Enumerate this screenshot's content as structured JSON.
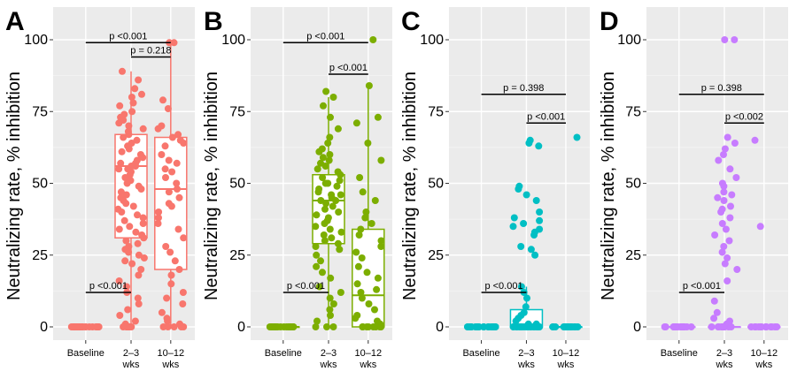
{
  "figure": {
    "y_axis_label": "Neutralizing rate, % inhibition",
    "groups": [
      "Baseline",
      "2–3 wks",
      "10–12 wks"
    ],
    "colors": {
      "A": "#F8766D",
      "B": "#7CAE00",
      "C": "#00BFC4",
      "D": "#C77CFF",
      "panel_background": "#EBEBEB",
      "grid_major": "#FFFFFF",
      "grid_minor": "#F5F5F5"
    }
  },
  "chart_data": [
    {
      "type": "box",
      "panel": "A",
      "categories": [
        "Baseline",
        "2–3 wks",
        "10–12 wks"
      ],
      "ylim": [
        0,
        100
      ],
      "yticks": [
        0,
        25,
        50,
        75,
        100
      ],
      "boxes": [
        {
          "group": "Baseline",
          "q1": 0,
          "median": 0,
          "q3": 0,
          "whisker_low": 0,
          "whisker_high": 0
        },
        {
          "group": "2–3 wks",
          "q1": 31,
          "median": 56,
          "q3": 67,
          "whisker_low": 0,
          "whisker_high": 89
        },
        {
          "group": "10–12 wks",
          "q1": 20,
          "median": 48,
          "q3": 66,
          "whisker_low": 0,
          "whisker_high": 99
        }
      ],
      "points": [
        {
          "group": "Baseline",
          "values": [
            0,
            0,
            0,
            0,
            0,
            0,
            0,
            0,
            0,
            0,
            0,
            0,
            0,
            0,
            0,
            0,
            0,
            0,
            0,
            0,
            0,
            0,
            0,
            0
          ]
        },
        {
          "group": "2–3 wks",
          "values": [
            89,
            86,
            83,
            81,
            80,
            78,
            77,
            75,
            74,
            73,
            72,
            71,
            70,
            69,
            68,
            67,
            66,
            65,
            64,
            63,
            62,
            61,
            60,
            59,
            58,
            57,
            57,
            56,
            56,
            55,
            55,
            54,
            53,
            52,
            51,
            50,
            49,
            48,
            47,
            46,
            45,
            44,
            43,
            42,
            41,
            40,
            39,
            38,
            37,
            36,
            35,
            34,
            33,
            32,
            31,
            30,
            29,
            28,
            27,
            26,
            25,
            24,
            23,
            22,
            20,
            18,
            16,
            14,
            12,
            10,
            8,
            6,
            4,
            2,
            1,
            0,
            0,
            0,
            0,
            0,
            0
          ]
        },
        {
          "group": "10–12 wks",
          "values": [
            99,
            99,
            79,
            76,
            70,
            69,
            67,
            66,
            65,
            64,
            63,
            60,
            58,
            57,
            55,
            54,
            52,
            50,
            48,
            47,
            45,
            43,
            42,
            40,
            38,
            36,
            34,
            31,
            28,
            26,
            23,
            20,
            18,
            15,
            12,
            10,
            8,
            5,
            3,
            2,
            1,
            0,
            0,
            0,
            0,
            0
          ]
        }
      ],
      "comparisons": [
        {
          "label": "p <0.001",
          "from": "Baseline",
          "to": "10–12 wks",
          "y": 99
        },
        {
          "label": "p = 0.218",
          "from": "2–3 wks",
          "to": "10–12 wks",
          "y": 94
        },
        {
          "label": "p <0.001",
          "from": "Baseline",
          "to": "2–3 wks",
          "y": 12
        }
      ]
    },
    {
      "type": "box",
      "panel": "B",
      "categories": [
        "Baseline",
        "2–3 wks",
        "10–12 wks"
      ],
      "ylim": [
        0,
        100
      ],
      "yticks": [
        0,
        25,
        50,
        75,
        100
      ],
      "boxes": [
        {
          "group": "Baseline",
          "q1": 0,
          "median": 0,
          "q3": 0,
          "whisker_low": 0,
          "whisker_high": 0
        },
        {
          "group": "2–3 wks",
          "q1": 29,
          "median": 44,
          "q3": 53,
          "whisker_low": 0,
          "whisker_high": 80
        },
        {
          "group": "10–12 wks",
          "q1": 0,
          "median": 11,
          "q3": 34,
          "whisker_low": 0,
          "whisker_high": 83
        }
      ],
      "points": [
        {
          "group": "Baseline",
          "values": [
            0,
            0,
            0,
            0,
            0,
            0,
            0,
            0,
            0,
            0,
            0,
            0,
            0,
            0,
            0,
            0,
            0,
            0,
            0,
            0
          ]
        },
        {
          "group": "2–3 wks",
          "values": [
            82,
            80,
            77,
            73,
            69,
            66,
            64,
            62,
            61,
            60,
            59,
            58,
            57,
            56,
            55,
            54,
            53,
            52,
            51,
            50,
            50,
            49,
            48,
            47,
            46,
            46,
            45,
            44,
            44,
            43,
            42,
            41,
            40,
            39,
            38,
            37,
            36,
            35,
            34,
            33,
            32,
            31,
            30,
            29,
            28,
            27,
            25,
            23,
            21,
            19,
            17,
            14,
            12,
            10,
            8,
            6,
            4,
            2,
            0,
            0,
            0
          ]
        },
        {
          "group": "10–12 wks",
          "values": [
            100,
            84,
            73,
            71,
            64,
            58,
            52,
            47,
            44,
            40,
            38,
            36,
            34,
            32,
            30,
            28,
            26,
            24,
            21,
            19,
            17,
            15,
            13,
            12,
            10,
            8,
            6,
            4,
            3,
            2,
            1,
            0,
            0,
            0,
            0,
            0,
            0,
            0,
            0
          ]
        }
      ],
      "comparisons": [
        {
          "label": "p <0.001",
          "from": "Baseline",
          "to": "10–12 wks",
          "y": 99
        },
        {
          "label": "p <0.001",
          "from": "2–3 wks",
          "to": "10–12 wks",
          "y": 88
        },
        {
          "label": "p <0.001",
          "from": "Baseline",
          "to": "2–3 wks",
          "y": 12
        }
      ]
    },
    {
      "type": "box",
      "panel": "C",
      "categories": [
        "Baseline",
        "2–3 wks",
        "10–12 wks"
      ],
      "ylim": [
        0,
        100
      ],
      "yticks": [
        0,
        25,
        50,
        75,
        100
      ],
      "boxes": [
        {
          "group": "Baseline",
          "q1": 0,
          "median": 0,
          "q3": 0,
          "whisker_low": 0,
          "whisker_high": 0
        },
        {
          "group": "2–3 wks",
          "q1": 0,
          "median": 0,
          "q3": 6,
          "whisker_low": 0,
          "whisker_high": 14
        },
        {
          "group": "10–12 wks",
          "q1": 0,
          "median": 0,
          "q3": 0,
          "whisker_low": 0,
          "whisker_high": 0
        }
      ],
      "points": [
        {
          "group": "Baseline",
          "values": [
            0,
            0,
            0,
            0,
            0,
            0,
            0,
            0,
            0,
            0,
            0,
            0,
            0,
            0,
            0,
            0,
            0,
            0
          ]
        },
        {
          "group": "2–3 wks",
          "values": [
            65,
            64,
            63,
            49,
            48,
            46,
            44,
            40,
            38,
            37,
            36,
            35,
            34,
            33,
            32,
            28,
            27,
            25,
            14,
            12,
            10,
            7,
            5,
            4,
            3,
            2,
            1,
            1,
            0,
            0,
            0,
            0,
            0,
            0,
            0,
            0,
            0,
            0,
            0,
            0,
            0,
            0,
            0,
            0,
            0,
            0,
            0
          ]
        },
        {
          "group": "10–12 wks",
          "values": [
            66,
            0,
            0,
            0,
            0,
            0,
            0,
            0,
            0,
            0,
            0,
            0,
            0,
            0,
            0,
            0
          ]
        }
      ],
      "comparisons": [
        {
          "label": "p = 0.398",
          "from": "Baseline",
          "to": "10–12 wks",
          "y": 81
        },
        {
          "label": "p <0.001",
          "from": "2–3 wks",
          "to": "10–12 wks",
          "y": 71
        },
        {
          "label": "p <0.001",
          "from": "Baseline",
          "to": "2–3 wks",
          "y": 12
        }
      ]
    },
    {
      "type": "box",
      "panel": "D",
      "categories": [
        "Baseline",
        "2–3 wks",
        "10–12 wks"
      ],
      "ylim": [
        0,
        100
      ],
      "yticks": [
        0,
        25,
        50,
        75,
        100
      ],
      "boxes": [
        {
          "group": "Baseline",
          "q1": 0,
          "median": 0,
          "q3": 0,
          "whisker_low": 0,
          "whisker_high": 0
        },
        {
          "group": "2–3 wks",
          "q1": 0,
          "median": 0,
          "q3": 0,
          "whisker_low": 0,
          "whisker_high": 0
        },
        {
          "group": "10–12 wks",
          "q1": 0,
          "median": 0,
          "q3": 0,
          "whisker_low": 0,
          "whisker_high": 0
        }
      ],
      "points": [
        {
          "group": "Baseline",
          "values": [
            0,
            0,
            0,
            0,
            0,
            0,
            0,
            0,
            0,
            0,
            0,
            0,
            0,
            0,
            0,
            0,
            0,
            0
          ]
        },
        {
          "group": "2–3 wks",
          "values": [
            100,
            100,
            66,
            64,
            62,
            60,
            58,
            55,
            52,
            50,
            49,
            47,
            46,
            45,
            44,
            42,
            41,
            40,
            38,
            36,
            34,
            32,
            30,
            28,
            26,
            24,
            22,
            20,
            16,
            9,
            5,
            3,
            2,
            1,
            0,
            0,
            0,
            0,
            0,
            0,
            0,
            0,
            0,
            0,
            0,
            0
          ]
        },
        {
          "group": "10–12 wks",
          "values": [
            65,
            35,
            0,
            0,
            0,
            0,
            0,
            0,
            0,
            0,
            0,
            0,
            0,
            0,
            0
          ]
        }
      ],
      "comparisons": [
        {
          "label": "p = 0.398",
          "from": "Baseline",
          "to": "10–12 wks",
          "y": 81
        },
        {
          "label": "p <0.002",
          "from": "2–3 wks",
          "to": "10–12 wks",
          "y": 71
        },
        {
          "label": "p <0.001",
          "from": "Baseline",
          "to": "2–3 wks",
          "y": 12
        }
      ]
    }
  ]
}
